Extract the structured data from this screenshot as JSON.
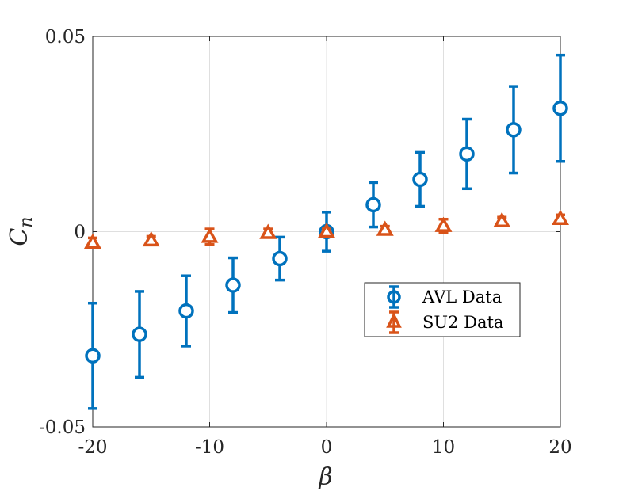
{
  "chart_data": {
    "type": "scatter",
    "title": "",
    "xlabel": "β",
    "ylabel": {
      "main": "C",
      "sub": "n"
    },
    "xlim": [
      -20,
      20
    ],
    "ylim": [
      -0.05,
      0.05
    ],
    "xticks": [
      -20,
      -10,
      0,
      10,
      20
    ],
    "xtick_labels": [
      "-20",
      "-10",
      "0",
      "10",
      "20"
    ],
    "yticks": [
      -0.05,
      0,
      0.05
    ],
    "ytick_labels": [
      "-0.05",
      "0",
      "0.05"
    ],
    "grid": true,
    "legend_position": "center-right",
    "series": [
      {
        "name": "AVL Data",
        "marker": "circle",
        "color": "#0072BD",
        "x": [
          -20,
          -16,
          -12,
          -8,
          -4,
          0,
          4,
          8,
          12,
          16,
          20
        ],
        "y": [
          -0.0318,
          -0.0263,
          -0.0203,
          -0.0137,
          -0.0069,
          0.0,
          0.0069,
          0.0134,
          0.0199,
          0.0261,
          0.0316
        ],
        "err": [
          0.0135,
          0.011,
          0.009,
          0.007,
          0.0055,
          0.005,
          0.0057,
          0.0069,
          0.0089,
          0.0111,
          0.0136
        ]
      },
      {
        "name": "SU2 Data",
        "marker": "triangle",
        "color": "#D95319",
        "x": [
          -20,
          -15,
          -10,
          -5,
          0,
          5,
          10,
          15,
          20
        ],
        "y": [
          -0.0028,
          -0.0022,
          -0.0013,
          -0.0003,
          0.0,
          0.0005,
          0.0015,
          0.0027,
          0.0033
        ],
        "err": [
          0.0012,
          0.001,
          0.002,
          0.001,
          0.0007,
          0.0009,
          0.0017,
          0.001,
          0.001
        ]
      }
    ]
  }
}
